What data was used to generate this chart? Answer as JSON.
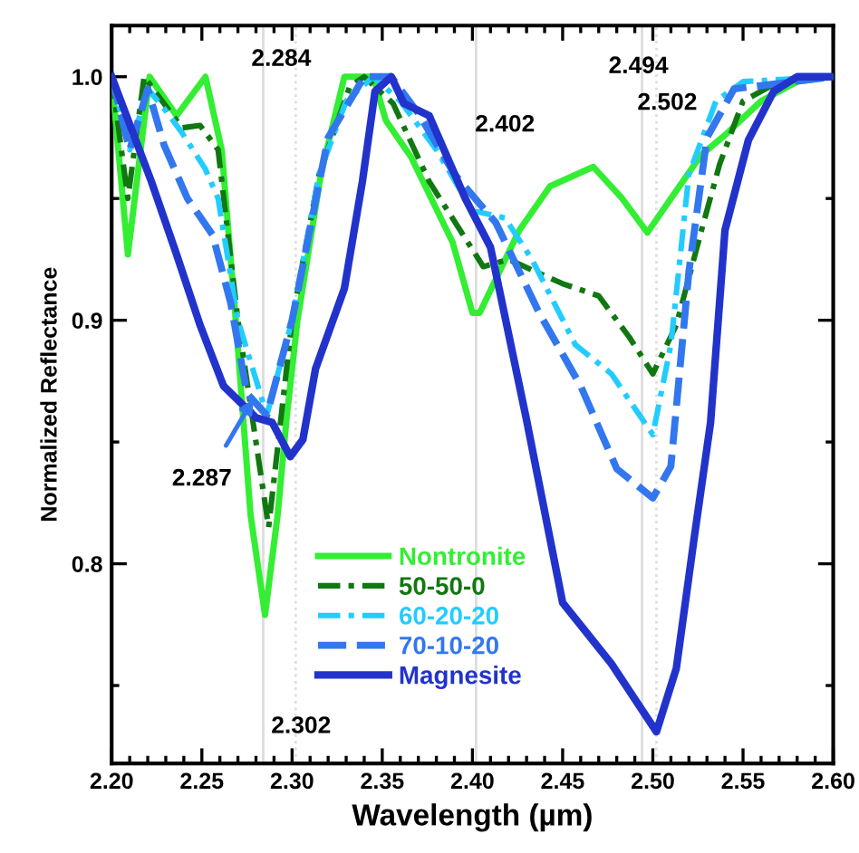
{
  "chart_data": {
    "type": "line",
    "xlabel": "Wavelength (µm)",
    "ylabel": "Normalized Reflectance",
    "xlim": [
      2.2,
      2.6
    ],
    "ylim": [
      0.718,
      1.021
    ],
    "xticks": [
      {
        "value": 2.2,
        "label": "2.20"
      },
      {
        "value": 2.25,
        "label": "2.25"
      },
      {
        "value": 2.3,
        "label": "2.30"
      },
      {
        "value": 2.35,
        "label": "2.35"
      },
      {
        "value": 2.4,
        "label": "2.40"
      },
      {
        "value": 2.45,
        "label": "2.45"
      },
      {
        "value": 2.5,
        "label": "2.50"
      },
      {
        "value": 2.55,
        "label": "2.55"
      },
      {
        "value": 2.6,
        "label": "2.60"
      }
    ],
    "yticks": [
      {
        "value": 0.8,
        "label": "0.8"
      },
      {
        "value": 0.9,
        "label": "0.9"
      },
      {
        "value": 1.0,
        "label": "1.0"
      }
    ],
    "grid": false,
    "legend": "bottom",
    "marker": "none",
    "ref_lines": [
      {
        "axis": "x",
        "value": 2.284,
        "label": "2.284",
        "color": "#dddddd",
        "line_style": "solid"
      },
      {
        "axis": "x",
        "value": 2.302,
        "label": "2.302",
        "color": "#dddddd",
        "line_style": "dotted"
      },
      {
        "axis": "x",
        "value": 2.402,
        "label": "2.402",
        "color": "#dddddd",
        "line_style": "solid"
      },
      {
        "axis": "x",
        "value": 2.494,
        "label": "2.494",
        "color": "#dddddd",
        "line_style": "solid"
      },
      {
        "axis": "x",
        "value": 2.502,
        "label": "2.502",
        "color": "#dddddd",
        "line_style": "dotted"
      }
    ],
    "annotations": [
      "2.287"
    ],
    "series": [
      {
        "name": "Nontronite",
        "color": "#33ee33",
        "line_style": "solid",
        "x": [
          2.2,
          2.209,
          2.221,
          2.236,
          2.252,
          2.261,
          2.269,
          2.277,
          2.285,
          2.292,
          2.297,
          2.303,
          2.316,
          2.329,
          2.345,
          2.352,
          2.366,
          2.389,
          2.4,
          2.404,
          2.426,
          2.443,
          2.467,
          2.483,
          2.497,
          2.51,
          2.527,
          2.54,
          2.56,
          2.58,
          2.6
        ],
        "values": [
          1.0,
          0.927,
          1.0,
          0.984,
          1.0,
          0.97,
          0.898,
          0.82,
          0.779,
          0.82,
          0.86,
          0.9,
          0.96,
          1.0,
          1.0,
          0.982,
          0.967,
          0.932,
          0.903,
          0.903,
          0.937,
          0.955,
          0.963,
          0.95,
          0.936,
          0.95,
          0.968,
          0.976,
          0.99,
          0.998,
          1.0
        ]
      },
      {
        "name": "50-50-0",
        "color": "#117711",
        "line_style": "dashdot",
        "x": [
          2.2,
          2.209,
          2.218,
          2.239,
          2.249,
          2.259,
          2.27,
          2.287,
          2.3,
          2.315,
          2.332,
          2.34,
          2.356,
          2.376,
          2.406,
          2.42,
          2.45,
          2.47,
          2.487,
          2.5,
          2.513,
          2.527,
          2.537,
          2.55,
          2.57,
          2.6
        ],
        "values": [
          1.0,
          0.95,
          1.0,
          0.979,
          0.98,
          0.97,
          0.9,
          0.815,
          0.9,
          0.96,
          0.996,
          1.0,
          0.989,
          0.957,
          0.922,
          0.925,
          0.915,
          0.91,
          0.893,
          0.878,
          0.898,
          0.937,
          0.964,
          0.99,
          0.998,
          1.0
        ]
      },
      {
        "name": "60-20-20",
        "color": "#22ccff",
        "line_style": "dashdot",
        "x": [
          2.2,
          2.21,
          2.22,
          2.229,
          2.239,
          2.252,
          2.259,
          2.27,
          2.286,
          2.3,
          2.315,
          2.33,
          2.345,
          2.36,
          2.38,
          2.4,
          2.418,
          2.433,
          2.457,
          2.477,
          2.5,
          2.51,
          2.52,
          2.535,
          2.55,
          2.6
        ],
        "values": [
          1.0,
          0.97,
          0.995,
          0.987,
          0.977,
          0.962,
          0.95,
          0.9,
          0.861,
          0.9,
          0.96,
          0.99,
          1.0,
          0.99,
          0.97,
          0.945,
          0.942,
          0.925,
          0.89,
          0.878,
          0.853,
          0.89,
          0.96,
          0.99,
          0.998,
          1.0
        ]
      },
      {
        "name": "70-10-20",
        "color": "#3377ee",
        "line_style": "dashed",
        "x": [
          2.2,
          2.21,
          2.22,
          2.229,
          2.242,
          2.256,
          2.266,
          2.275,
          2.286,
          2.3,
          2.32,
          2.34,
          2.355,
          2.37,
          2.39,
          2.413,
          2.437,
          2.46,
          2.48,
          2.5,
          2.51,
          2.52,
          2.53,
          2.545,
          2.6
        ],
        "values": [
          1.0,
          0.97,
          0.995,
          0.972,
          0.95,
          0.935,
          0.907,
          0.87,
          0.861,
          0.9,
          0.975,
          1.0,
          1.0,
          0.985,
          0.96,
          0.94,
          0.903,
          0.873,
          0.839,
          0.827,
          0.84,
          0.92,
          0.975,
          0.995,
          1.0
        ]
      },
      {
        "name": "Magnesite",
        "color": "#2233cc",
        "line_style": "solid",
        "x": [
          2.2,
          2.222,
          2.236,
          2.249,
          2.262,
          2.28,
          2.289,
          2.299,
          2.306,
          2.313,
          2.329,
          2.339,
          2.346,
          2.355,
          2.362,
          2.376,
          2.396,
          2.41,
          2.43,
          2.45,
          2.477,
          2.502,
          2.513,
          2.523,
          2.532,
          2.54,
          2.553,
          2.567,
          2.58,
          2.6
        ],
        "values": [
          1.0,
          0.957,
          0.927,
          0.898,
          0.873,
          0.86,
          0.858,
          0.844,
          0.851,
          0.88,
          0.913,
          0.957,
          0.994,
          1.0,
          0.989,
          0.984,
          0.95,
          0.93,
          0.859,
          0.784,
          0.759,
          0.731,
          0.757,
          0.811,
          0.858,
          0.937,
          0.974,
          0.994,
          1.0,
          1.0
        ]
      }
    ]
  }
}
